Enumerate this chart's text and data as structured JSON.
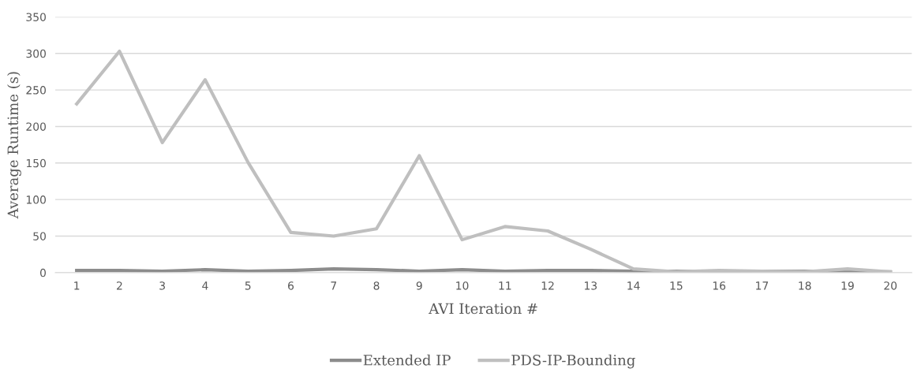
{
  "chart_data": {
    "type": "line",
    "xlabel": "AVI Iteration #",
    "ylabel": "Average Runtime (s)",
    "categories": [
      "1",
      "2",
      "3",
      "4",
      "5",
      "6",
      "7",
      "8",
      "9",
      "10",
      "11",
      "12",
      "13",
      "14",
      "15",
      "16",
      "17",
      "18",
      "19",
      "20"
    ],
    "series": [
      {
        "name": "Extended IP",
        "color": "#8c8c8c",
        "values": [
          3,
          3,
          2,
          4,
          2,
          3,
          5,
          4,
          2,
          4,
          2,
          3,
          3,
          2,
          2,
          1,
          2,
          2,
          1,
          1
        ]
      },
      {
        "name": "PDS-IP-Bounding",
        "color": "#bfbfbf",
        "values": [
          231,
          303,
          178,
          264,
          151,
          55,
          50,
          60,
          160,
          45,
          63,
          57,
          32,
          5,
          1,
          3,
          2,
          1,
          5,
          1
        ]
      }
    ],
    "ylim": [
      0,
      350
    ],
    "yticks": [
      0,
      50,
      100,
      150,
      200,
      250,
      300,
      350
    ],
    "grid": "y",
    "legend": "bottom",
    "marker": "none",
    "line_style": "solid"
  }
}
